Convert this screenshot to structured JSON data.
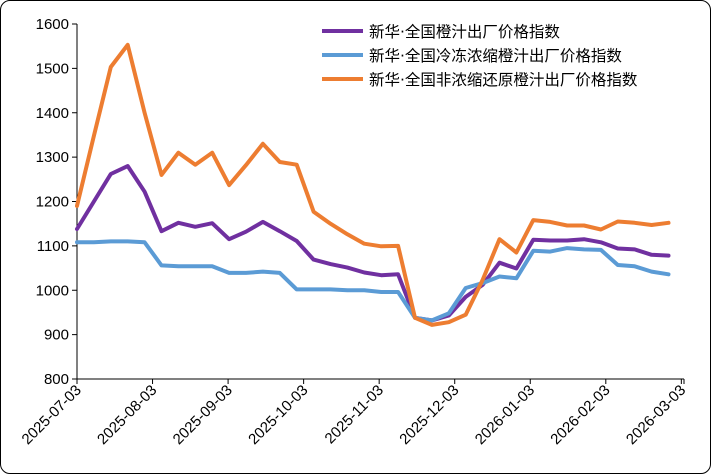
{
  "chart_data": {
    "type": "line",
    "title": "",
    "xlabel": "",
    "ylabel": "",
    "ylim": [
      800,
      1600
    ],
    "y_ticks": [
      "800",
      "900",
      "1000",
      "1100",
      "1200",
      "1300",
      "1400",
      "1500",
      "1600"
    ],
    "x_ticks": [
      "2025-07-03",
      "2025-08-03",
      "2025-09-03",
      "2025-10-03",
      "2025-11-03",
      "2025-12-03",
      "2026-01-03",
      "2026-02-03",
      "2026-03-03"
    ],
    "legend_position": "top-right",
    "points_per_tick": 4.47,
    "series": [
      {
        "name": "新华·全国橙汁出厂价格指数",
        "color": "#7030A0",
        "values": [
          1138,
          1200,
          1262,
          1280,
          1222,
          1133,
          1152,
          1143,
          1151,
          1115,
          1132,
          1154,
          1133,
          1111,
          1069,
          1059,
          1051,
          1040,
          1034,
          1036,
          938,
          932,
          943,
          985,
          1012,
          1062,
          1049,
          1114,
          1112,
          1112,
          1115,
          1108,
          1094,
          1092,
          1080,
          1078
        ]
      },
      {
        "name": "新华·全国冷冻浓缩橙汁出厂价格指数",
        "color": "#5B9BD5",
        "values": [
          1108,
          1108,
          1110,
          1110,
          1108,
          1056,
          1054,
          1054,
          1054,
          1039,
          1039,
          1042,
          1039,
          1002,
          1002,
          1002,
          1000,
          1000,
          996,
          996,
          938,
          932,
          948,
          1005,
          1016,
          1031,
          1027,
          1089,
          1087,
          1095,
          1092,
          1091,
          1057,
          1054,
          1042,
          1036
        ]
      },
      {
        "name": "新华·全国非浓缩还原橙汁出厂价格指数",
        "color": "#ED7D31",
        "values": [
          1190,
          1348,
          1503,
          1553,
          1400,
          1260,
          1310,
          1283,
          1310,
          1237,
          1282,
          1330,
          1289,
          1283,
          1177,
          1150,
          1126,
          1105,
          1099,
          1100,
          938,
          922,
          928,
          945,
          1023,
          1115,
          1085,
          1158,
          1154,
          1146,
          1146,
          1137,
          1155,
          1152,
          1147,
          1152
        ]
      }
    ]
  }
}
